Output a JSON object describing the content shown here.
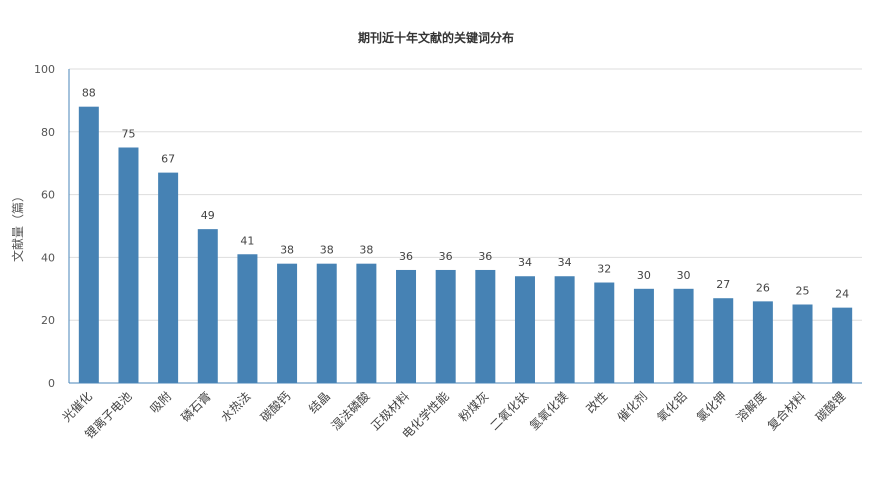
{
  "chart_data": {
    "type": "bar",
    "title": "期刊近十年文献的关键词分布",
    "xlabel": "",
    "ylabel": "文献量（篇）",
    "ylim": [
      0,
      100
    ],
    "yticks": [
      0,
      20,
      40,
      60,
      80,
      100
    ],
    "grid": true,
    "legend": "none",
    "bar_color": "#4682b4",
    "categories": [
      "光催化",
      "锂离子电池",
      "吸附",
      "磷石膏",
      "水热法",
      "碳酸钙",
      "结晶",
      "湿法磷酸",
      "正极材料",
      "电化学性能",
      "粉煤灰",
      "二氧化钛",
      "氢氧化镁",
      "改性",
      "催化剂",
      "氧化铝",
      "氯化钾",
      "溶解度",
      "复合材料",
      "碳酸锂"
    ],
    "values": [
      88,
      75,
      67,
      49,
      41,
      38,
      38,
      38,
      36,
      36,
      36,
      34,
      34,
      32,
      30,
      30,
      27,
      26,
      25,
      24
    ]
  }
}
